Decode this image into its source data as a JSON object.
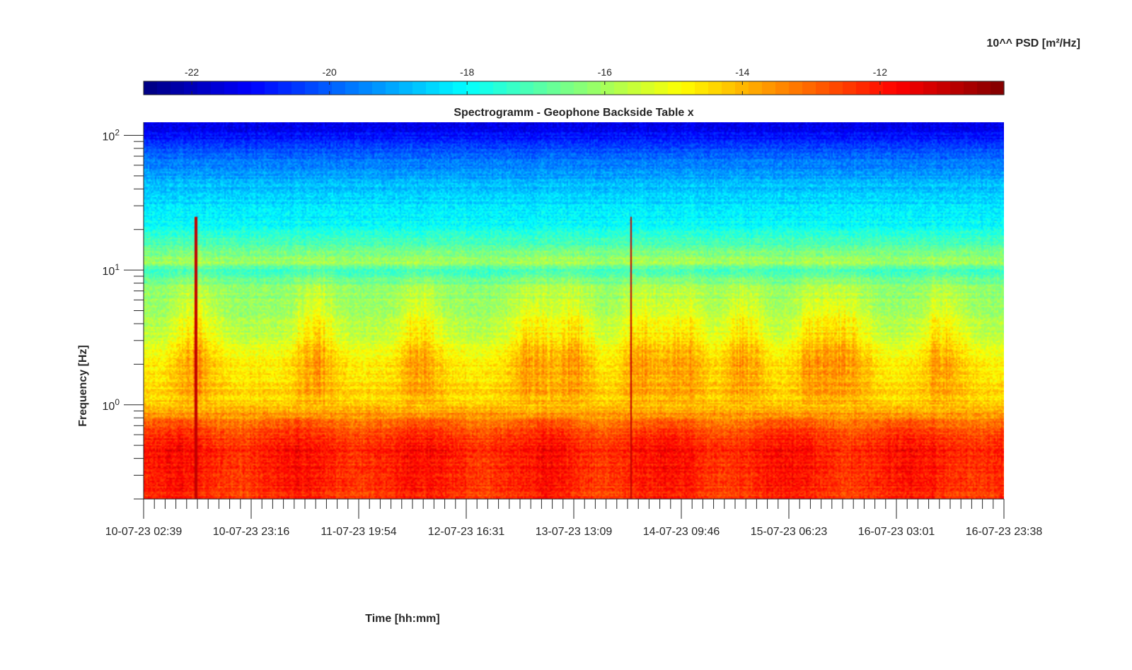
{
  "chart_data": {
    "type": "heatmap",
    "title": "Spectrogramm - Geophone Backside Table x",
    "xlabel": "Time [hh:mm]",
    "ylabel": "Frequency [Hz]",
    "x_tick_labels": [
      "10-07-23 02:39",
      "10-07-23 23:16",
      "11-07-23 19:54",
      "12-07-23 16:31",
      "13-07-23 13:09",
      "14-07-23 09:46",
      "15-07-23 06:23",
      "16-07-23 03:01",
      "16-07-23 23:38"
    ],
    "y_scale": "log",
    "ylim": [
      0.2,
      125
    ],
    "y_ticks": [
      {
        "value": 1,
        "base": "10",
        "exp": "0"
      },
      {
        "value": 10,
        "base": "10",
        "exp": "1"
      },
      {
        "value": 100,
        "base": "10",
        "exp": "2"
      }
    ],
    "colorbar": {
      "label": "10^^ PSD [m²/Hz]",
      "range": [
        -22.7,
        -10.2
      ],
      "ticks": [
        -22,
        -20,
        -18,
        -16,
        -14,
        -12
      ],
      "tick_labels": [
        "-22",
        "-20",
        "-18",
        "-16",
        "-14",
        "-12"
      ],
      "colormap": "jet"
    },
    "psd_profile": [
      {
        "freq": 0.2,
        "log_psd": -12.3
      },
      {
        "freq": 0.3,
        "log_psd": -12.2
      },
      {
        "freq": 0.45,
        "log_psd": -12.0
      },
      {
        "freq": 0.6,
        "log_psd": -12.4
      },
      {
        "freq": 0.8,
        "log_psd": -13.4
      },
      {
        "freq": 1.0,
        "log_psd": -14.3
      },
      {
        "freq": 2.0,
        "log_psd": -14.8
      },
      {
        "freq": 4.0,
        "log_psd": -16.0
      },
      {
        "freq": 7.5,
        "log_psd": -16.3
      },
      {
        "freq": 10,
        "log_psd": -17.4
      },
      {
        "freq": 11.5,
        "log_psd": -16.0
      },
      {
        "freq": 20,
        "log_psd": -17.8
      },
      {
        "freq": 40,
        "log_psd": -18.7
      },
      {
        "freq": 70,
        "log_psd": -19.8
      },
      {
        "freq": 100,
        "log_psd": -21.0
      },
      {
        "freq": 125,
        "log_psd": -21.5
      }
    ],
    "day_activity_centers": [
      0.06,
      0.2,
      0.32,
      0.45,
      0.5,
      0.58,
      0.63,
      0.7,
      0.78,
      0.82,
      0.93
    ],
    "transient_spikes": [
      0.06,
      0.567
    ]
  }
}
